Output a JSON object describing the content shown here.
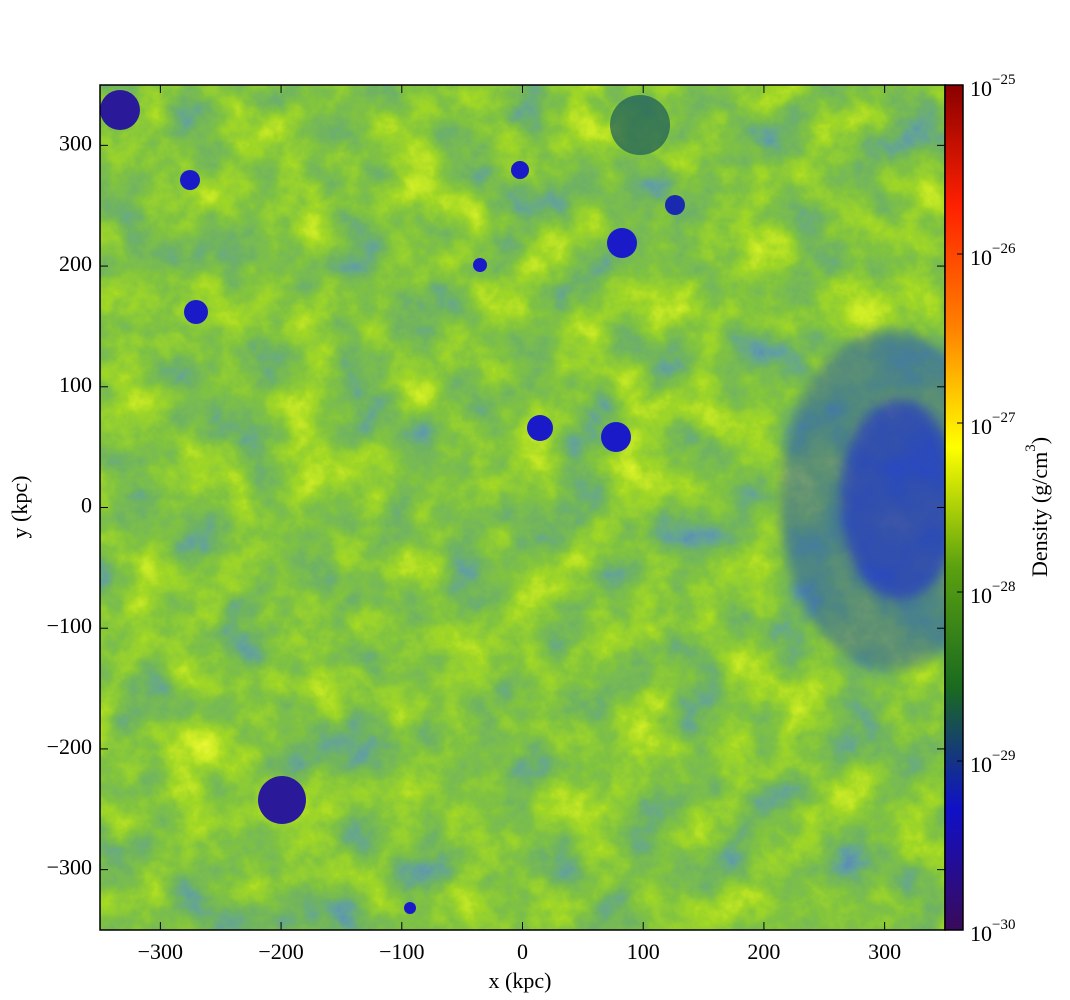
{
  "chart_data": {
    "type": "heatmap",
    "xlabel": "x  (kpc)",
    "ylabel": "y  (kpc)",
    "xlim": [
      -350,
      350
    ],
    "ylim": [
      -350,
      350
    ],
    "xticks": [
      {
        "value": -300,
        "label": "−300"
      },
      {
        "value": -200,
        "label": "−200"
      },
      {
        "value": -100,
        "label": "−100"
      },
      0,
      100,
      200,
      300
    ],
    "yticks": [
      {
        "value": -300,
        "label": "−300"
      },
      {
        "value": -200,
        "label": "−200"
      },
      {
        "value": -100,
        "label": "−100"
      },
      0,
      100,
      200,
      300
    ],
    "colorbar": {
      "label": "Density  (g/cm^3)",
      "log": true,
      "lim": [
        1e-30,
        1e-25
      ],
      "ticks": [
        {
          "value": 1e-30,
          "label": "10^−30"
        },
        {
          "value": 1e-29,
          "label": "10^−29"
        },
        {
          "value": 1e-28,
          "label": "10^−28"
        },
        {
          "value": 1e-27,
          "label": "10^−27"
        },
        {
          "value": 1e-26,
          "label": "10^−26"
        },
        {
          "value": 1e-25,
          "label": "10^−25"
        }
      ],
      "colors": [
        "#3a0a5a",
        "#1010c8",
        "#1a6a20",
        "#5aa010",
        "#ffff00",
        "#ff8000",
        "#ff2000",
        "#8a0000"
      ]
    }
  }
}
